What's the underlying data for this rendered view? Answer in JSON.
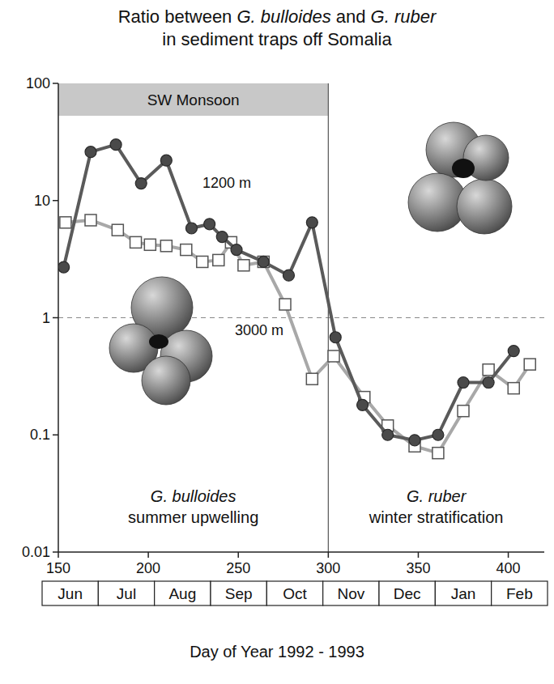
{
  "chart_data": {
    "type": "line",
    "title": "Ratio between G. bulloides and G. ruber",
    "subtitle": "in sediment traps off Somalia",
    "x_label": "Day of Year 1992 - 1993",
    "log": "y",
    "grid": false,
    "xlim": [
      150,
      420
    ],
    "ylim": [
      0.01,
      100
    ],
    "xticks": [
      150,
      200,
      250,
      300,
      350,
      400
    ],
    "yticks": [
      0.01,
      0.1,
      1,
      10,
      100
    ],
    "months": [
      "Jun",
      "Jul",
      "Aug",
      "Sep",
      "Oct",
      "Nov",
      "Dec",
      "Jan",
      "Feb"
    ],
    "shaded_band": {
      "label": "SW Monsoon",
      "x": [
        150,
        300
      ]
    },
    "vline": 300,
    "hline": 1,
    "annotations": [
      {
        "species": "G. bulloides",
        "text": "summer upwelling"
      },
      {
        "species": "G. ruber",
        "text": "winter stratification"
      }
    ],
    "series": [
      {
        "name": "1200 m",
        "color": "#5a5a5a",
        "marker": "circle",
        "line_style": "solid",
        "x": [
          153,
          168,
          182,
          196,
          210,
          224,
          234,
          241,
          249,
          264,
          278,
          291,
          304,
          319,
          333,
          348,
          361,
          375,
          389,
          403
        ],
        "values": [
          2.7,
          26,
          30,
          14,
          22,
          5.8,
          6.3,
          4.9,
          3.8,
          3.0,
          2.3,
          6.5,
          0.68,
          0.18,
          0.1,
          0.09,
          0.1,
          0.28,
          0.28,
          0.52
        ]
      },
      {
        "name": "3000 m",
        "color": "#a8a8a8",
        "marker": "square",
        "line_style": "solid",
        "x": [
          154,
          168,
          183,
          193,
          201,
          210,
          221,
          230,
          239,
          246,
          253,
          264,
          276,
          291,
          303,
          320,
          333,
          348,
          361,
          375,
          389,
          403,
          412
        ],
        "values": [
          6.5,
          6.8,
          5.6,
          4.4,
          4.2,
          4.1,
          3.8,
          3.0,
          3.1,
          4.4,
          2.8,
          3.0,
          1.3,
          0.3,
          0.47,
          0.21,
          0.12,
          0.08,
          0.07,
          0.16,
          0.36,
          0.25,
          0.4
        ]
      }
    ]
  }
}
